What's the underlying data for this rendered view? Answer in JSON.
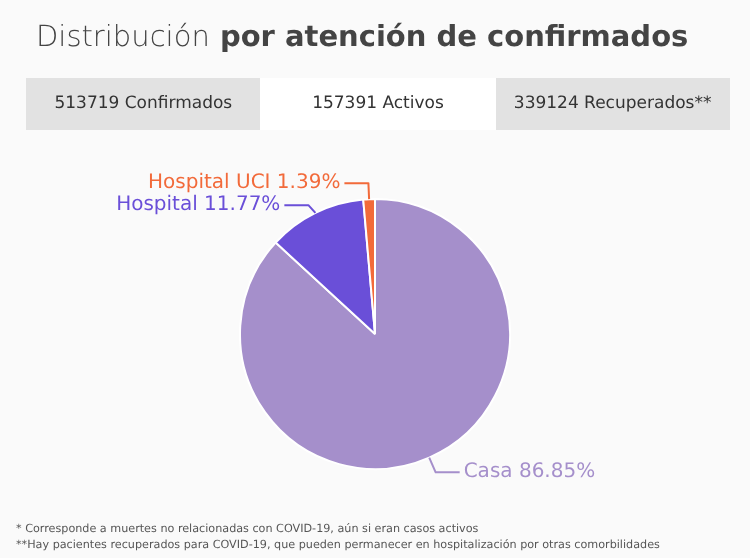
{
  "chart_data": {
    "type": "pie",
    "title": "Distribución por atención de confirmados",
    "categories": [
      "Casa",
      "Hospital",
      "Hospital UCI"
    ],
    "values": [
      86.85,
      11.77,
      1.39
    ],
    "value_labels": [
      "86.85%",
      "11.77%",
      "1.39%"
    ],
    "colors": [
      "#a58fcb",
      "#6a4fd8",
      "#f26a3a"
    ],
    "legend": false,
    "annotations": [
      "513719 Confirmados",
      "157391 Activos",
      "339124 Recuperados**",
      "* Corresponde a muertes no relacionadas con COVID-19, aún si eran casos activos",
      "**Hay pacientes recuperados para COVID-19, que pueden permanecer en hospitalización por otras comorbilidades"
    ]
  }
}
